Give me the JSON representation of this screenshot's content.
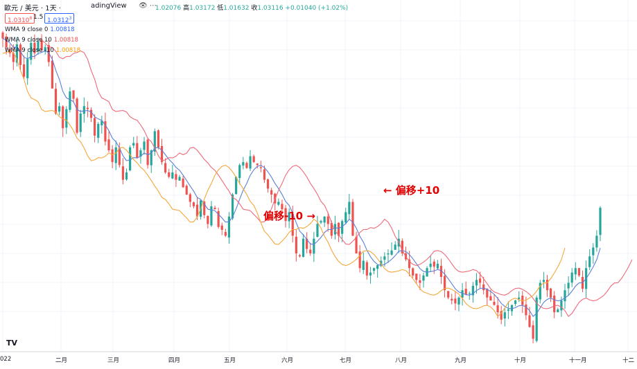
{
  "header": {
    "symbol": "歐元 / 美元 · 1天 ·",
    "source": "adingView",
    "open_label": "開",
    "open": "1.02076",
    "high_label": "高",
    "high": "1.03172",
    "low_label": "低",
    "low": "1.01632",
    "close_label": "收",
    "close": "1.03116",
    "change": "+0.01040 (+1.02%)"
  },
  "price_boxes": {
    "sell": "1.0310",
    "sell_sup": "8",
    "spread": "1.5",
    "buy": "1.0312",
    "buy_sup": "3"
  },
  "legend": [
    {
      "label": "WMA 9 close 0",
      "value": "1.00818",
      "color": "#2962ff"
    },
    {
      "label": "WMA 9 close 10",
      "value": "1.00818",
      "color": "#ef5350"
    },
    {
      "label": "WMA 9 close -10",
      "value": "1.00818",
      "color": "#ff9800"
    }
  ],
  "annotations": {
    "plus": "偏移+10",
    "minus": "偏移-10"
  },
  "colors": {
    "up": "#26a69a",
    "down": "#ef5350",
    "wma0": "#5b7fd8",
    "wma_plus": "#ef6a7a",
    "wma_minus": "#f5a73a",
    "annotation": "#e10000"
  },
  "chart_data": {
    "type": "candlestick",
    "x_labels": [
      "022",
      "二月",
      "三月",
      "四月",
      "五月",
      "六月",
      "七月",
      "八月",
      "九月",
      "十月",
      "十一月",
      "十二"
    ],
    "series": [
      {
        "name": "WMA 9 close 0",
        "offset": 0
      },
      {
        "name": "WMA 9 close 10",
        "offset": 10
      },
      {
        "name": "WMA 9 close -10",
        "offset": -10
      }
    ],
    "close_path": [
      1.146,
      1.14,
      1.136,
      1.13,
      1.142,
      1.128,
      1.12,
      1.132,
      1.143,
      1.136,
      1.144,
      1.138,
      1.14,
      1.13,
      1.112,
      1.095,
      1.1,
      1.085,
      1.098,
      1.11,
      1.105,
      1.082,
      1.095,
      1.1,
      1.098,
      1.092,
      1.08,
      1.088,
      1.09,
      1.076,
      1.07,
      1.062,
      1.072,
      1.06,
      1.05,
      1.055,
      1.072,
      1.075,
      1.065,
      1.07,
      1.076,
      1.06,
      1.07,
      1.083,
      1.072,
      1.062,
      1.055,
      1.052,
      1.055,
      1.05,
      1.052,
      1.045,
      1.04,
      1.035,
      1.032,
      1.025,
      1.036,
      1.026,
      1.02,
      1.032,
      1.03,
      1.018,
      1.016,
      1.012,
      1.025,
      1.04,
      1.052,
      1.06,
      1.062,
      1.058,
      1.066,
      1.062,
      1.06,
      1.058,
      1.05,
      1.044,
      1.04,
      1.034,
      1.035,
      1.03,
      1.022,
      1.028,
      1.012,
      1.0,
      0.998,
      1.01,
      1.003,
      1.0,
      1.01,
      1.02,
      1.022,
      1.025,
      1.02,
      1.012,
      1.02,
      1.012,
      1.022,
      1.028,
      1.035,
      1.012,
      1.0,
      0.99,
      0.995,
      0.985,
      0.987,
      0.99,
      0.992,
      0.995,
      0.998,
      1.0,
      1.002,
      1.006,
      1.01,
      1.0,
      0.996,
      0.99,
      0.985,
      0.982,
      0.98,
      0.985,
      0.99,
      0.993,
      0.991,
      0.993,
      0.984,
      0.975,
      0.97,
      0.968,
      0.966,
      0.97,
      0.975,
      0.972,
      0.973,
      0.978,
      0.982,
      0.98,
      0.975,
      0.97,
      0.968,
      0.965,
      0.96,
      0.955,
      0.96,
      0.962,
      0.965,
      0.968,
      0.97,
      0.965,
      0.958,
      0.95,
      0.942,
      0.97,
      0.98,
      0.982,
      0.975,
      0.97,
      0.96,
      0.962,
      0.968,
      0.975,
      0.98,
      0.987,
      0.99,
      0.985,
      0.976,
      0.99,
      0.998,
      1.004,
      1.012,
      1.031
    ],
    "ylim": [
      0.937,
      1.158
    ]
  }
}
